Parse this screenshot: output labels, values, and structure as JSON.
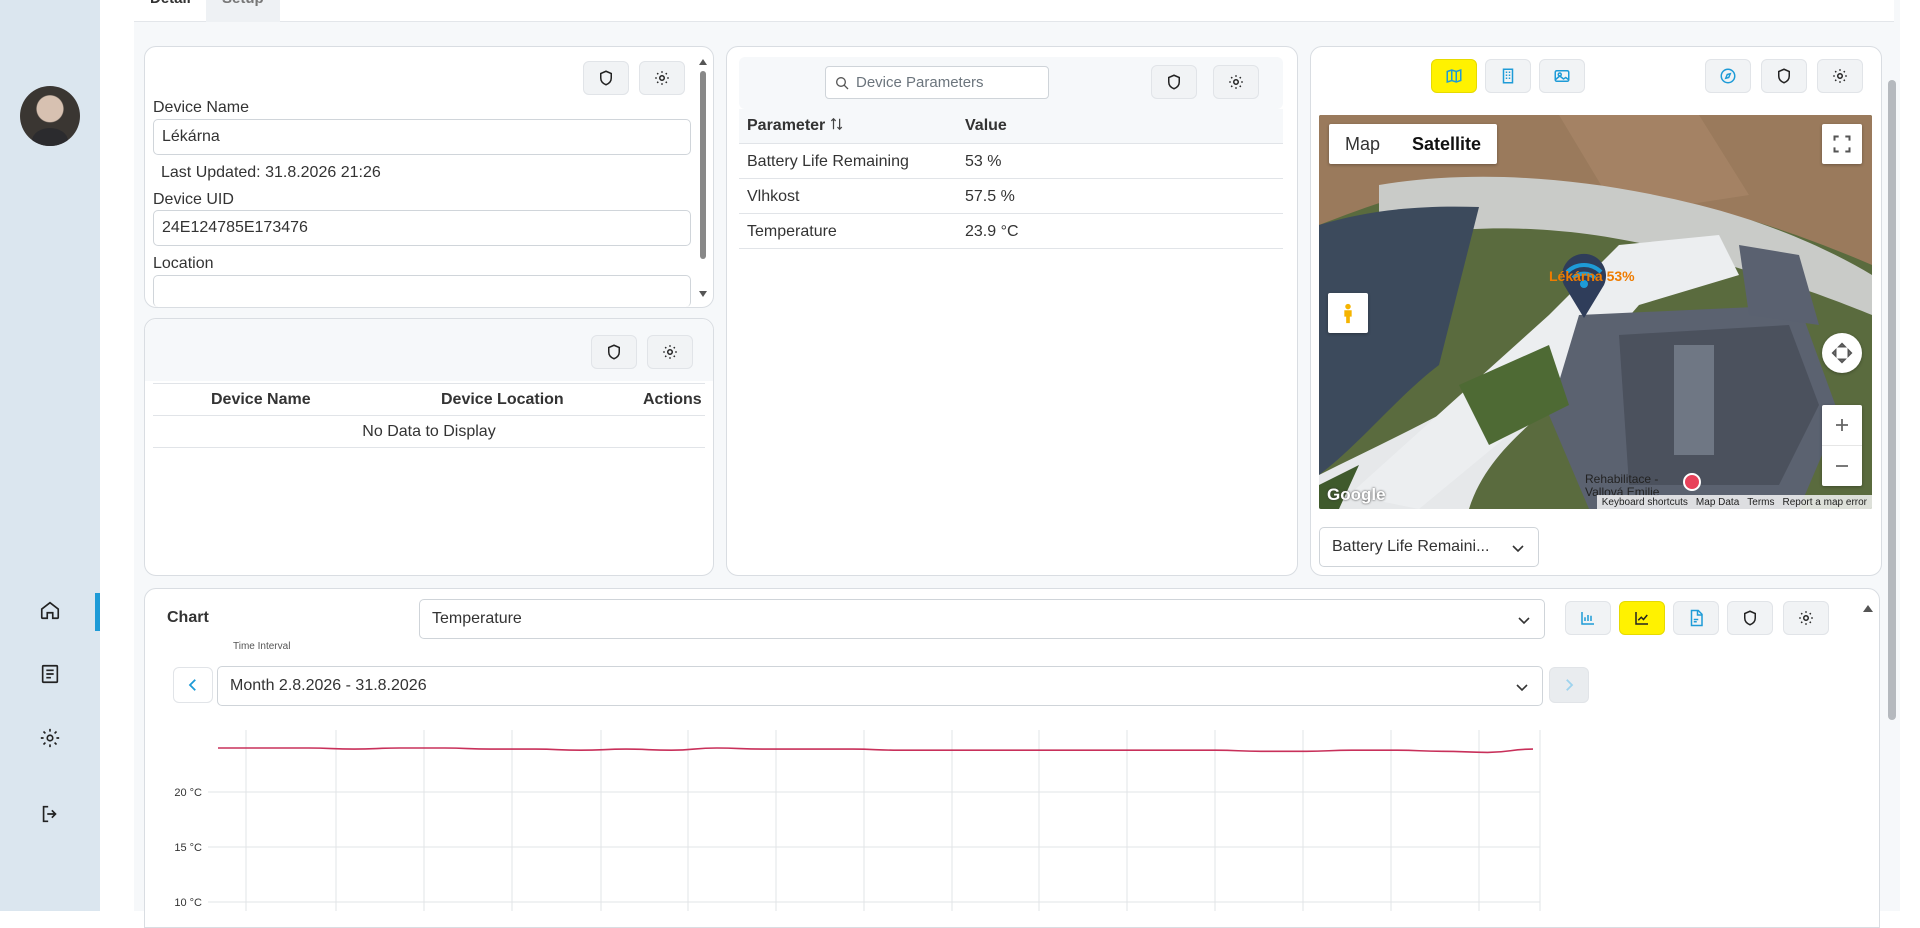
{
  "tabs": {
    "details": "Detail",
    "setup": "Setup"
  },
  "colors": {
    "accent": "#1e9bd7",
    "highlight": "#fff200",
    "series": "#c8305a",
    "sidebar": "#dbe6ef"
  },
  "device_panel": {
    "name_label": "Device Name",
    "name_value": "Lékárna",
    "last_updated": "Last Updated: 31.8.2026 21:26",
    "uid_label": "Device UID",
    "uid_value": "24E124785E173476",
    "location_label": "Location",
    "location_value": ""
  },
  "linked_devices": {
    "columns": [
      "Device Name",
      "Device Location",
      "Actions"
    ],
    "empty_text": "No Data to Display"
  },
  "parameters": {
    "search_placeholder": "Device Parameters",
    "columns": [
      "Parameter",
      "Value"
    ],
    "rows": [
      {
        "name": "Battery Life Remaining",
        "value": "53 %"
      },
      {
        "name": "Vlhkost",
        "value": "57.5 %"
      },
      {
        "name": "Temperature",
        "value": "23.9 °C"
      }
    ]
  },
  "map": {
    "type_map": "Map",
    "type_satellite": "Satellite",
    "marker_label": "Lékárna 53%",
    "poi_label": "Rehabilitace - Vallová Emilie",
    "footer": [
      "Keyboard shortcuts",
      "Map Data",
      "Terms",
      "Report a map error"
    ],
    "logo": "Google",
    "param_select": "Battery Life Remaini..."
  },
  "chart_panel": {
    "title": "Chart",
    "metric_select": "Temperature",
    "time_interval_label": "Time Interval",
    "time_interval_value": "Month 2.8.2026 - 31.8.2026"
  },
  "chart_data": {
    "type": "line",
    "title": "",
    "xlabel": "",
    "ylabel": "",
    "y_tick_labels": [
      "20 °C",
      "15 °C",
      "10 °C"
    ],
    "y_ticks": [
      20,
      15,
      10
    ],
    "ylim": [
      10,
      25
    ],
    "series": [
      {
        "color": "#c8305a",
        "x": [
          0,
          1,
          2,
          3,
          4,
          5,
          6,
          7,
          8,
          9,
          10,
          11,
          12,
          13,
          14,
          15,
          16,
          17,
          18,
          19,
          20,
          21,
          22,
          23,
          24,
          25,
          26,
          27,
          28,
          29
        ],
        "values": [
          24.0,
          24.0,
          24.0,
          23.9,
          24.0,
          24.0,
          23.9,
          23.9,
          23.8,
          23.9,
          23.8,
          24.0,
          23.9,
          23.9,
          23.9,
          23.8,
          23.8,
          23.8,
          23.8,
          23.8,
          23.8,
          23.8,
          23.8,
          23.7,
          23.7,
          23.8,
          23.8,
          23.7,
          23.6,
          23.9
        ]
      }
    ]
  }
}
